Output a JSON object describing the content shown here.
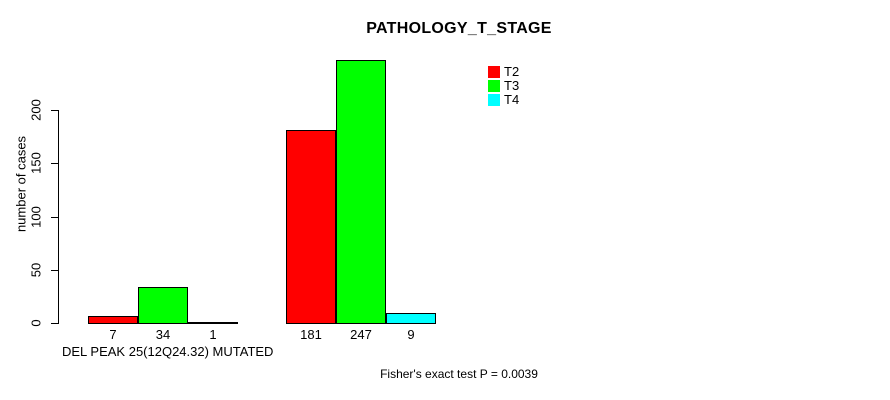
{
  "chart_data": {
    "type": "bar",
    "title": "PATHOLOGY_T_STAGE",
    "ylabel": "number of cases",
    "xlabel": "DEL PEAK 25(12Q24.32) MUTATED",
    "footnote": "Fisher's exact test P = 0.0039",
    "series": [
      {
        "name": "T2",
        "color": "#FF0000",
        "values": [
          7,
          181
        ]
      },
      {
        "name": "T3",
        "color": "#00FF00",
        "values": [
          34,
          247
        ]
      },
      {
        "name": "T4",
        "color": "#00FFFF",
        "values": [
          1,
          9
        ]
      }
    ],
    "group_count": 2,
    "bar_value_labels": [
      [
        7,
        34,
        1
      ],
      [
        181,
        247,
        9
      ]
    ],
    "yticks": [
      0,
      50,
      100,
      150,
      200
    ],
    "ylim": [
      0,
      250
    ],
    "grid": false,
    "legend_position": "top-right",
    "background_color": "#FFFFFF",
    "text_color": "#000000"
  }
}
